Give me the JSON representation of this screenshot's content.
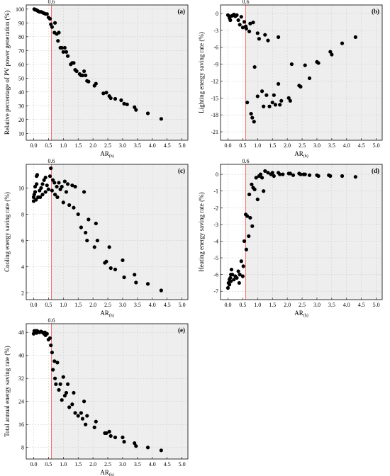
{
  "chart_data": [
    {
      "type": "scatter",
      "panel_label": "(a)",
      "xlabel": "AR",
      "xlabel_sub": "(h)",
      "ylabel": "Relative percentage of PV power generation (%)",
      "xlim": [
        -0.25,
        5.2
      ],
      "ylim": [
        5,
        103
      ],
      "xticks": [
        0.0,
        0.5,
        1.0,
        1.5,
        2.0,
        2.5,
        3.0,
        3.5,
        4.0,
        4.5,
        5.0
      ],
      "yticks": [
        10,
        20,
        30,
        40,
        50,
        60,
        70,
        80,
        90,
        100
      ],
      "ref_line_x": 0.6,
      "ref_line_label": "0.6",
      "grid": true,
      "points": [
        [
          0.02,
          100
        ],
        [
          0.05,
          99.5
        ],
        [
          0.08,
          99.5
        ],
        [
          0.12,
          99
        ],
        [
          0.15,
          98.5
        ],
        [
          0.2,
          98
        ],
        [
          0.25,
          98
        ],
        [
          0.3,
          97.5
        ],
        [
          0.35,
          97
        ],
        [
          0.4,
          96.5
        ],
        [
          0.45,
          96.5
        ],
        [
          0.5,
          94
        ],
        [
          0.55,
          93
        ],
        [
          0.58,
          89
        ],
        [
          0.62,
          87
        ],
        [
          0.7,
          83
        ],
        [
          0.72,
          90
        ],
        [
          0.78,
          82
        ],
        [
          0.82,
          77
        ],
        [
          0.85,
          83
        ],
        [
          0.9,
          72
        ],
        [
          0.95,
          72
        ],
        [
          1.0,
          69
        ],
        [
          1.05,
          72
        ],
        [
          1.1,
          69
        ],
        [
          1.15,
          66
        ],
        [
          1.25,
          60
        ],
        [
          1.3,
          61
        ],
        [
          1.35,
          61
        ],
        [
          1.4,
          56
        ],
        [
          1.45,
          55
        ],
        [
          1.55,
          53
        ],
        [
          1.6,
          52
        ],
        [
          1.65,
          52
        ],
        [
          1.7,
          55
        ],
        [
          1.75,
          52
        ],
        [
          1.8,
          48
        ],
        [
          1.85,
          47.5
        ],
        [
          2.05,
          44.5
        ],
        [
          2.1,
          46
        ],
        [
          2.35,
          39
        ],
        [
          2.45,
          39.5
        ],
        [
          2.55,
          37
        ],
        [
          2.6,
          35.5
        ],
        [
          2.75,
          35
        ],
        [
          2.95,
          34
        ],
        [
          3.05,
          31.5
        ],
        [
          3.15,
          31
        ],
        [
          3.4,
          29
        ],
        [
          3.45,
          27
        ],
        [
          3.85,
          24.5
        ],
        [
          4.3,
          20.5
        ]
      ]
    },
    {
      "type": "scatter",
      "panel_label": "(b)",
      "xlabel": "AR",
      "xlabel_sub": "(h)",
      "ylabel": "Lighting energy saving rate (%)",
      "xlim": [
        -0.25,
        5.2
      ],
      "ylim": [
        -22.5,
        1.5
      ],
      "xticks": [
        0.0,
        0.5,
        1.0,
        1.5,
        2.0,
        2.5,
        3.0,
        3.5,
        4.0,
        4.5,
        5.0
      ],
      "yticks": [
        0,
        -3,
        -6,
        -9,
        -12,
        -15,
        -18,
        -21
      ],
      "ref_line_x": 0.6,
      "ref_line_label": "0.6",
      "grid": true,
      "points": [
        [
          0.0,
          -0.3
        ],
        [
          0.05,
          -0.8
        ],
        [
          0.08,
          -1.2
        ],
        [
          0.1,
          -0.5
        ],
        [
          0.15,
          -0.4
        ],
        [
          0.2,
          -0.2
        ],
        [
          0.25,
          -0.5
        ],
        [
          0.3,
          -0.3
        ],
        [
          0.35,
          -1.2
        ],
        [
          0.4,
          -2.0
        ],
        [
          0.45,
          -0.6
        ],
        [
          0.5,
          -2.5
        ],
        [
          0.55,
          -1.5
        ],
        [
          0.6,
          -2.3
        ],
        [
          0.62,
          -2.7
        ],
        [
          0.65,
          -15.8
        ],
        [
          0.72,
          -3.2
        ],
        [
          0.75,
          -1.8
        ],
        [
          0.78,
          -17.8
        ],
        [
          0.82,
          -18.5
        ],
        [
          0.85,
          -1.6
        ],
        [
          0.88,
          -19.2
        ],
        [
          0.9,
          -9.5
        ],
        [
          1.0,
          -3.5
        ],
        [
          1.0,
          -14.7
        ],
        [
          1.05,
          -4.5
        ],
        [
          1.15,
          -13.8
        ],
        [
          1.2,
          -16.5
        ],
        [
          1.25,
          -3.8
        ],
        [
          1.3,
          -14.5
        ],
        [
          1.35,
          -4.8
        ],
        [
          1.4,
          -16.5
        ],
        [
          1.5,
          -15.8
        ],
        [
          1.55,
          -14.5
        ],
        [
          1.6,
          -16.2
        ],
        [
          1.7,
          -4.2
        ],
        [
          1.7,
          -12.5
        ],
        [
          1.75,
          -16.2
        ],
        [
          1.8,
          -15.5
        ],
        [
          2.05,
          -15.0
        ],
        [
          2.1,
          -15.5
        ],
        [
          2.15,
          -9.0
        ],
        [
          2.4,
          -12.8
        ],
        [
          2.45,
          -13.0
        ],
        [
          2.6,
          -9.2
        ],
        [
          2.75,
          -11.5
        ],
        [
          3.0,
          -8.6
        ],
        [
          3.05,
          -8.8
        ],
        [
          3.45,
          -6.8
        ],
        [
          3.5,
          -7.3
        ],
        [
          3.85,
          -5.3
        ],
        [
          4.3,
          -4.2
        ]
      ]
    },
    {
      "type": "scatter",
      "panel_label": "(c)",
      "xlabel": "AR",
      "xlabel_sub": "(h)",
      "ylabel": "Cooling energy saving rate (%)",
      "xlim": [
        -0.25,
        5.2
      ],
      "ylim": [
        1.5,
        11.8
      ],
      "xticks": [
        0.0,
        0.5,
        1.0,
        1.5,
        2.0,
        2.5,
        3.0,
        3.5,
        4.0,
        4.5,
        5.0
      ],
      "yticks": [
        2,
        4,
        6,
        8,
        10
      ],
      "ref_line_x": 0.6,
      "ref_line_label": "0.6",
      "grid": true,
      "points": [
        [
          0.0,
          9.0
        ],
        [
          0.0,
          9.3
        ],
        [
          0.02,
          9.5
        ],
        [
          0.05,
          9.7
        ],
        [
          0.05,
          10.1
        ],
        [
          0.08,
          9.1
        ],
        [
          0.1,
          10.9
        ],
        [
          0.1,
          10.3
        ],
        [
          0.12,
          11.0
        ],
        [
          0.15,
          9.3
        ],
        [
          0.2,
          9.8
        ],
        [
          0.22,
          9.3
        ],
        [
          0.25,
          10.0
        ],
        [
          0.3,
          10.3
        ],
        [
          0.3,
          9.5
        ],
        [
          0.35,
          10.6
        ],
        [
          0.4,
          10.8
        ],
        [
          0.4,
          9.7
        ],
        [
          0.45,
          10.2
        ],
        [
          0.5,
          9.9
        ],
        [
          0.55,
          10.9
        ],
        [
          0.58,
          11.5
        ],
        [
          0.62,
          9.8
        ],
        [
          0.65,
          10.6
        ],
        [
          0.7,
          10.4
        ],
        [
          0.72,
          9.5
        ],
        [
          0.78,
          10.1
        ],
        [
          0.8,
          9.3
        ],
        [
          0.85,
          10.4
        ],
        [
          0.9,
          9.9
        ],
        [
          0.95,
          10.1
        ],
        [
          1.0,
          8.9
        ],
        [
          1.05,
          10.5
        ],
        [
          1.1,
          9.7
        ],
        [
          1.15,
          10.3
        ],
        [
          1.2,
          8.7
        ],
        [
          1.3,
          10.2
        ],
        [
          1.35,
          8.5
        ],
        [
          1.4,
          10.1
        ],
        [
          1.5,
          8.0
        ],
        [
          1.6,
          7.0
        ],
        [
          1.7,
          9.7
        ],
        [
          1.75,
          6.6
        ],
        [
          1.8,
          6.0
        ],
        [
          1.85,
          7.6
        ],
        [
          2.05,
          5.5
        ],
        [
          2.1,
          7.3
        ],
        [
          2.15,
          6.0
        ],
        [
          2.4,
          4.3
        ],
        [
          2.45,
          4.4
        ],
        [
          2.55,
          5.5
        ],
        [
          2.6,
          3.9
        ],
        [
          2.75,
          3.8
        ],
        [
          3.0,
          4.5
        ],
        [
          3.05,
          3.2
        ],
        [
          3.4,
          3.4
        ],
        [
          3.45,
          2.8
        ],
        [
          3.85,
          2.7
        ],
        [
          4.3,
          2.2
        ]
      ]
    },
    {
      "type": "scatter",
      "panel_label": "(d)",
      "xlabel": "AR",
      "xlabel_sub": "(h)",
      "ylabel": "Heating energy saving rate (%)",
      "xlim": [
        -0.25,
        5.2
      ],
      "ylim": [
        -7.5,
        0.6
      ],
      "xticks": [
        0.0,
        0.5,
        1.0,
        1.5,
        2.0,
        2.5,
        3.0,
        3.5,
        4.0,
        4.5,
        5.0
      ],
      "yticks": [
        0,
        -1,
        -2,
        -3,
        -4,
        -5,
        -6,
        -7
      ],
      "ref_line_x": 0.6,
      "ref_line_label": "0.6",
      "grid": true,
      "points": [
        [
          0.0,
          -6.8
        ],
        [
          0.02,
          -6.5
        ],
        [
          0.05,
          -6.3
        ],
        [
          0.05,
          -6.6
        ],
        [
          0.08,
          -6.2
        ],
        [
          0.1,
          -6.0
        ],
        [
          0.1,
          -6.4
        ],
        [
          0.12,
          -5.7
        ],
        [
          0.15,
          -6.0
        ],
        [
          0.2,
          -6.3
        ],
        [
          0.25,
          -6.1
        ],
        [
          0.3,
          -6.2
        ],
        [
          0.35,
          -5.8
        ],
        [
          0.38,
          -6.5
        ],
        [
          0.4,
          -6.0
        ],
        [
          0.45,
          -5.2
        ],
        [
          0.5,
          -6.1
        ],
        [
          0.52,
          -5.5
        ],
        [
          0.55,
          -4.0
        ],
        [
          0.6,
          -2.4
        ],
        [
          0.62,
          -4.5
        ],
        [
          0.65,
          -2.5
        ],
        [
          0.7,
          -3.7
        ],
        [
          0.72,
          -1.2
        ],
        [
          0.75,
          -2.6
        ],
        [
          0.8,
          -0.6
        ],
        [
          0.82,
          -3.1
        ],
        [
          0.85,
          -0.8
        ],
        [
          0.9,
          -0.9
        ],
        [
          0.95,
          -0.2
        ],
        [
          1.0,
          -1.5
        ],
        [
          1.05,
          -0.1
        ],
        [
          1.1,
          0.0
        ],
        [
          1.15,
          -0.2
        ],
        [
          1.2,
          -1.0
        ],
        [
          1.25,
          0.2
        ],
        [
          1.35,
          0.1
        ],
        [
          1.45,
          0.0
        ],
        [
          1.5,
          0.1
        ],
        [
          1.55,
          -0.1
        ],
        [
          1.7,
          0.1
        ],
        [
          1.75,
          0.0
        ],
        [
          1.85,
          0.0
        ],
        [
          2.05,
          0.05
        ],
        [
          2.1,
          0.05
        ],
        [
          2.2,
          -0.05
        ],
        [
          2.4,
          0.05
        ],
        [
          2.45,
          0.0
        ],
        [
          2.55,
          0.0
        ],
        [
          2.6,
          0.0
        ],
        [
          2.75,
          -0.05
        ],
        [
          3.0,
          -0.05
        ],
        [
          3.05,
          -0.1
        ],
        [
          3.4,
          -0.05
        ],
        [
          3.45,
          -0.1
        ],
        [
          3.85,
          -0.1
        ],
        [
          4.3,
          -0.15
        ]
      ]
    },
    {
      "type": "scatter",
      "panel_label": "(e)",
      "xlabel": "AR",
      "xlabel_sub": "(h)",
      "ylabel": "Total annual energy saving rate (%)",
      "xlim": [
        -0.25,
        5.2
      ],
      "ylim": [
        4,
        51
      ],
      "xticks": [
        0.0,
        0.5,
        1.0,
        1.5,
        2.0,
        2.5,
        3.0,
        3.5,
        4.0,
        4.5,
        5.0
      ],
      "yticks": [
        8,
        16,
        24,
        32,
        40,
        48
      ],
      "ref_line_x": 0.6,
      "ref_line_label": "0.6",
      "grid": true,
      "points": [
        [
          0.0,
          47.5
        ],
        [
          0.02,
          48.5
        ],
        [
          0.05,
          48.0
        ],
        [
          0.08,
          48.5
        ],
        [
          0.1,
          47.8
        ],
        [
          0.12,
          48.5
        ],
        [
          0.15,
          48.2
        ],
        [
          0.2,
          48.0
        ],
        [
          0.25,
          48.3
        ],
        [
          0.3,
          48.0
        ],
        [
          0.35,
          47.5
        ],
        [
          0.38,
          48.0
        ],
        [
          0.4,
          47.0
        ],
        [
          0.45,
          47.5
        ],
        [
          0.5,
          45.5
        ],
        [
          0.55,
          46.0
        ],
        [
          0.58,
          43.5
        ],
        [
          0.62,
          41.0
        ],
        [
          0.65,
          35.0
        ],
        [
          0.7,
          38.0
        ],
        [
          0.72,
          32.0
        ],
        [
          0.75,
          30.0
        ],
        [
          0.8,
          37.5
        ],
        [
          0.85,
          28.0
        ],
        [
          0.9,
          30.0
        ],
        [
          0.95,
          24.5
        ],
        [
          1.0,
          32.5
        ],
        [
          1.05,
          26.0
        ],
        [
          1.1,
          27.0
        ],
        [
          1.15,
          30.0
        ],
        [
          1.2,
          22.0
        ],
        [
          1.3,
          23.0
        ],
        [
          1.35,
          27.0
        ],
        [
          1.4,
          20.0
        ],
        [
          1.5,
          19.0
        ],
        [
          1.6,
          20.0
        ],
        [
          1.65,
          18.0
        ],
        [
          1.7,
          24.0
        ],
        [
          1.75,
          16.0
        ],
        [
          1.8,
          19.0
        ],
        [
          2.05,
          15.0
        ],
        [
          2.1,
          17.0
        ],
        [
          2.4,
          13.0
        ],
        [
          2.45,
          13.0
        ],
        [
          2.55,
          13.5
        ],
        [
          2.6,
          12.0
        ],
        [
          2.75,
          11.5
        ],
        [
          3.0,
          11.5
        ],
        [
          3.05,
          10.0
        ],
        [
          3.4,
          9.5
        ],
        [
          3.45,
          8.5
        ],
        [
          3.85,
          8.0
        ],
        [
          4.3,
          7.0
        ]
      ]
    }
  ]
}
